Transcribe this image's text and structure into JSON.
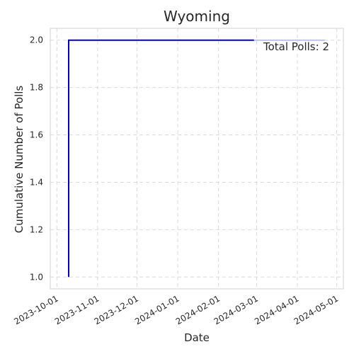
{
  "chart_data": {
    "type": "line",
    "title": "Wyoming",
    "xlabel": "Date",
    "ylabel": "Cumulative Number of Polls",
    "x_axis": {
      "type": "date",
      "range": [
        "2023-09-26",
        "2024-05-06"
      ],
      "ticks": [
        "2023-10-01",
        "2023-11-01",
        "2023-12-01",
        "2024-01-01",
        "2024-02-01",
        "2024-03-01",
        "2024-04-01",
        "2024-05-01"
      ]
    },
    "y_axis": {
      "range": [
        0.95,
        2.05
      ],
      "ticks": [
        1.0,
        1.2,
        1.4,
        1.6,
        1.8,
        2.0
      ]
    },
    "grid": true,
    "series": [
      {
        "color": "#0000cc",
        "points": [
          {
            "x": "2023-10-10",
            "y": 1
          },
          {
            "x": "2023-10-10",
            "y": 2
          },
          {
            "x": "2024-02-28",
            "y": 2
          }
        ]
      }
    ],
    "overlay_line": {
      "color": "#aab4ee",
      "from": "2024-02-28",
      "to": "2024-04-22",
      "y": 2
    },
    "annotation": {
      "text": "Total Polls: 2",
      "position": "top-right"
    }
  }
}
